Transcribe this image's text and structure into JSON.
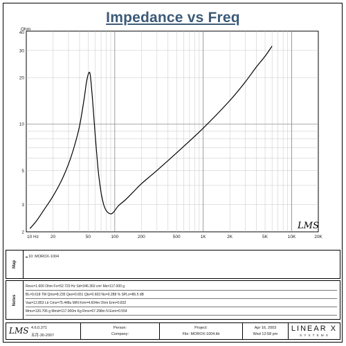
{
  "chart_data": {
    "type": "line",
    "title": "Impedance vs Freq",
    "ylabel_unit": "Ohm",
    "x_scale": "log",
    "y_scale": "log",
    "xlim": [
      10,
      20000
    ],
    "ylim": [
      2,
      40
    ],
    "x_ticks": [
      {
        "v": 10,
        "label": "10 Hz"
      },
      {
        "v": 20,
        "label": "20"
      },
      {
        "v": 50,
        "label": "50"
      },
      {
        "v": 100,
        "label": "100"
      },
      {
        "v": 200,
        "label": "200"
      },
      {
        "v": 500,
        "label": "500"
      },
      {
        "v": 1000,
        "label": "1K"
      },
      {
        "v": 2000,
        "label": "2K"
      },
      {
        "v": 5000,
        "label": "5K"
      },
      {
        "v": 10000,
        "label": "10K"
      },
      {
        "v": 20000,
        "label": "20K"
      }
    ],
    "y_ticks": [
      {
        "v": 2,
        "label": "2"
      },
      {
        "v": 3,
        "label": "3"
      },
      {
        "v": 5,
        "label": "5"
      },
      {
        "v": 10,
        "label": "10"
      },
      {
        "v": 20,
        "label": "20"
      },
      {
        "v": 30,
        "label": "30"
      },
      {
        "v": 40,
        "label": "40"
      }
    ],
    "grid": true,
    "series": [
      {
        "name": "10: MOROX-1004",
        "color": "#000000",
        "points": [
          [
            11,
            2.1
          ],
          [
            13,
            2.35
          ],
          [
            16,
            2.8
          ],
          [
            20,
            3.4
          ],
          [
            25,
            4.3
          ],
          [
            30,
            5.5
          ],
          [
            35,
            7.2
          ],
          [
            40,
            9.7
          ],
          [
            45,
            14.5
          ],
          [
            48,
            18.8
          ],
          [
            51,
            21.5
          ],
          [
            53,
            20.5
          ],
          [
            56,
            14.5
          ],
          [
            60,
            8.6
          ],
          [
            65,
            5.0
          ],
          [
            70,
            3.6
          ],
          [
            75,
            3.0
          ],
          [
            80,
            2.75
          ],
          [
            87,
            2.63
          ],
          [
            95,
            2.65
          ],
          [
            110,
            2.95
          ],
          [
            130,
            3.2
          ],
          [
            160,
            3.6
          ],
          [
            200,
            4.1
          ],
          [
            300,
            5.0
          ],
          [
            500,
            6.5
          ],
          [
            1000,
            9.4
          ],
          [
            2000,
            14.2
          ],
          [
            3000,
            18.8
          ],
          [
            4000,
            23.5
          ],
          [
            5000,
            27.5
          ],
          [
            6000,
            32.0
          ]
        ]
      }
    ]
  },
  "map": {
    "tab_label": "Map",
    "legend_entry": "10: MOROX-1004"
  },
  "notes": {
    "tab_label": "Notes",
    "rows": [
      "Revc=1.600 Ohm  Fo=52.720 Hz  Sd=346.360 cm²  Ms=117.000 g",
      "BL=9.618 TM  Qms=8.235  Qes=0.651  Qts=0.603  No=0.288 %  SPLo=86.5 dB",
      "Vas=12.853 Ltr  Cms=75.448u M/N  Krm=4.604m Ohm  Erm=0.832",
      "Mms=120.706 g  Mmd=117.000m Kg  Rms=67.298m N  Exm=0.554"
    ]
  },
  "footer": {
    "version": "4.6.0.371",
    "date_built": "五月-30-2007",
    "person_label": "Person:",
    "company_label": "Company:",
    "project_label": "Project:",
    "file_label": "File: MOROX-1004.lib",
    "date": "Apr 16, 2003",
    "time": "Wed 12:58 pm",
    "brand": "LINEAR X",
    "brand_sub": "S Y S T E M S",
    "logo": "LMS"
  },
  "watermark": "LMS"
}
